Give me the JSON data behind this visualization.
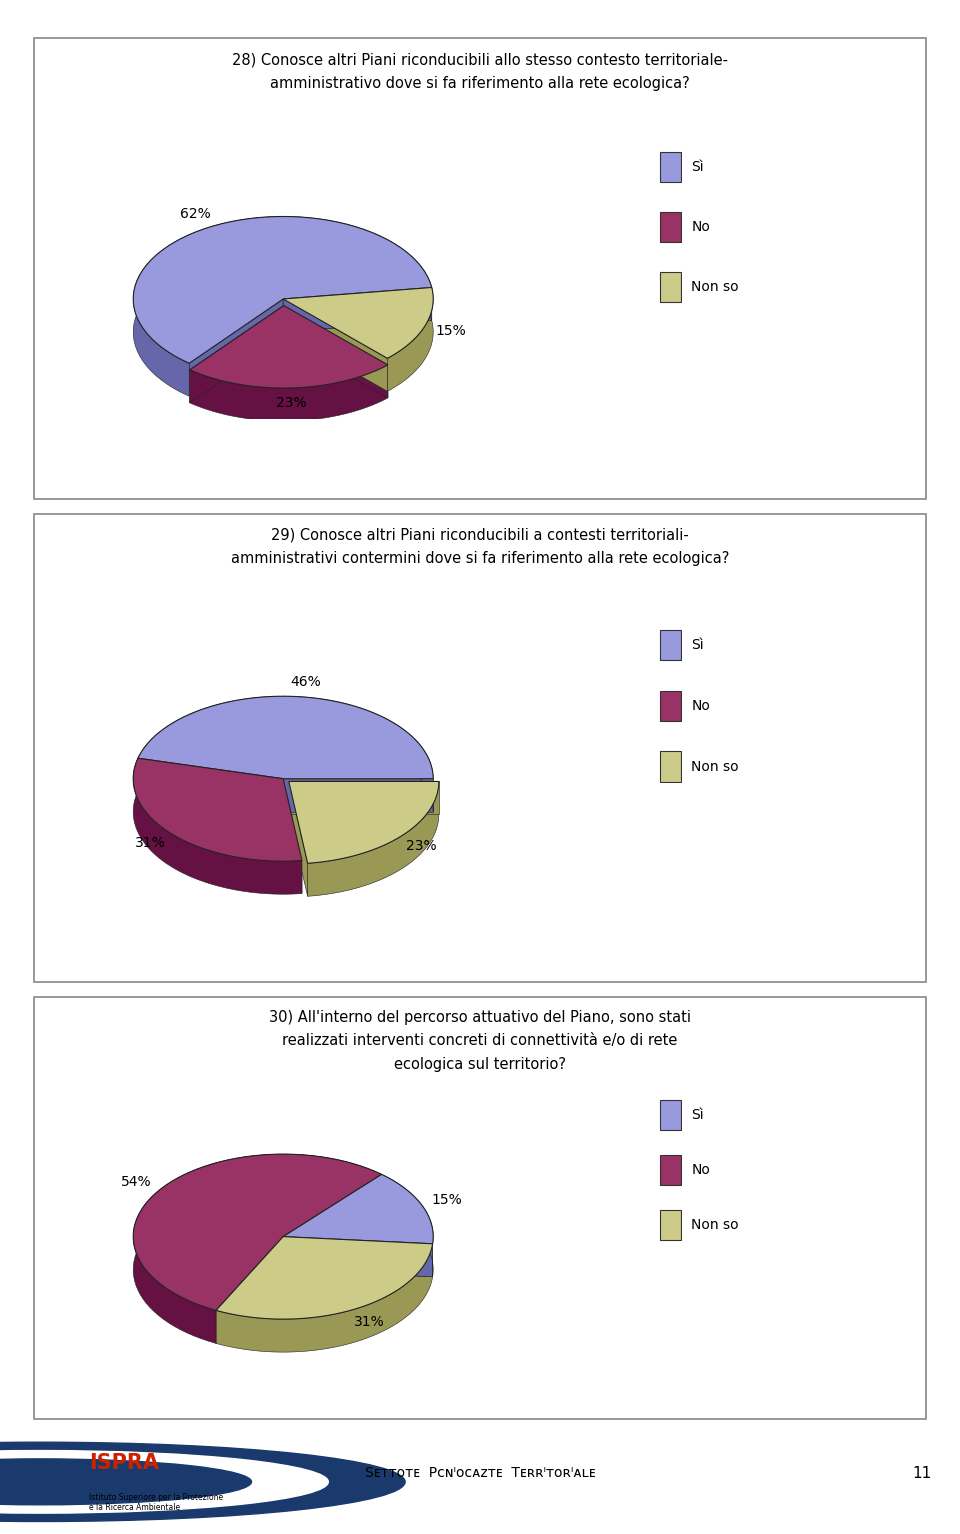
{
  "charts": [
    {
      "title": "28) Conosce altri Piani riconducibili allo stesso contesto territoriale-\namministrativo dove si fa riferimento alla rete ecologica?",
      "values": [
        62,
        23,
        15
      ],
      "pct_labels": [
        "62%",
        "23%",
        "15%"
      ],
      "label_positions": [
        "right",
        "left",
        "top"
      ],
      "colors_top": [
        "#9999dd",
        "#993366",
        "#cccc88"
      ],
      "colors_side": [
        "#6666aa",
        "#661144",
        "#999955"
      ],
      "start_angle": 8,
      "explode": [
        0,
        0.08,
        0
      ]
    },
    {
      "title": "29) Conosce altri Piani riconducibili a contesti territoriali-\namministrativi contermini dove si fa riferimento alla rete ecologica?",
      "values": [
        46,
        31,
        23
      ],
      "pct_labels": [
        "46%",
        "31%",
        "23%"
      ],
      "label_positions": [
        "right",
        "bottom",
        "top"
      ],
      "colors_top": [
        "#9999dd",
        "#993366",
        "#cccc88"
      ],
      "colors_side": [
        "#6666aa",
        "#661144",
        "#999955"
      ],
      "start_angle": 0,
      "explode": [
        0,
        0,
        0.05
      ]
    },
    {
      "title": "30) All'interno del percorso attuativo del Piano, sono stati\nrealizzati interventi concreti di connettività e/o di rete\necologica sul territorio?",
      "values": [
        15,
        54,
        31
      ],
      "pct_labels": [
        "15%",
        "54%",
        "31%"
      ],
      "label_positions": [
        "top",
        "bottom",
        "left"
      ],
      "colors_top": [
        "#9999dd",
        "#993366",
        "#cccc88"
      ],
      "colors_side": [
        "#6666aa",
        "#661144",
        "#999955"
      ],
      "start_angle": 355,
      "explode": [
        0,
        0,
        0
      ]
    }
  ],
  "legend_labels": [
    "Sì",
    "No",
    "Non so"
  ],
  "legend_colors_top": [
    "#9999dd",
    "#993366",
    "#cccc88"
  ],
  "bg_color": "#ffffff",
  "panel_edge_color": "#888888"
}
